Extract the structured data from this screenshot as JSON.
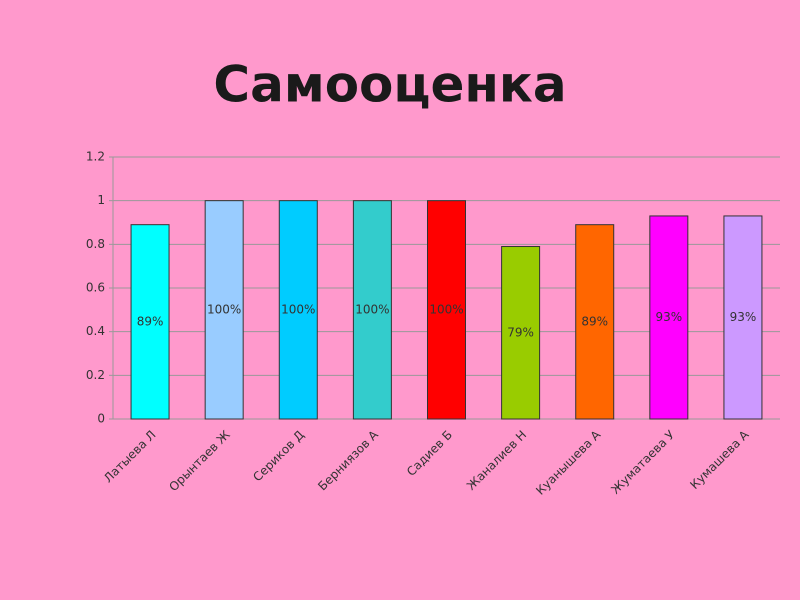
{
  "chart_data": {
    "type": "bar",
    "title": "Самооценка",
    "categories": [
      "Латыева Л",
      "Орынтаев Ж",
      "Сериков Д",
      "Берниязов А",
      "Садиев Б",
      "Жаналиев Н",
      "Куанышева А",
      "Жуматаева У",
      "Кумашева А"
    ],
    "values": [
      0.89,
      1,
      1,
      1,
      1,
      0.79,
      0.89,
      0.93,
      0.93
    ],
    "value_labels": [
      "89%",
      "100%",
      "100%",
      "100%",
      "100%",
      "79%",
      "89%",
      "93%",
      "93%"
    ],
    "colors": [
      "#00ffff",
      "#99ccff",
      "#00ccff",
      "#33cccc",
      "#ff0000",
      "#99cc00",
      "#ff6600",
      "#ff00ff",
      "#cc99ff"
    ],
    "ylim": [
      0,
      1.2
    ],
    "yticks": [
      0,
      0.2,
      0.4,
      0.6,
      0.8,
      1,
      1.2
    ],
    "grid": true
  }
}
